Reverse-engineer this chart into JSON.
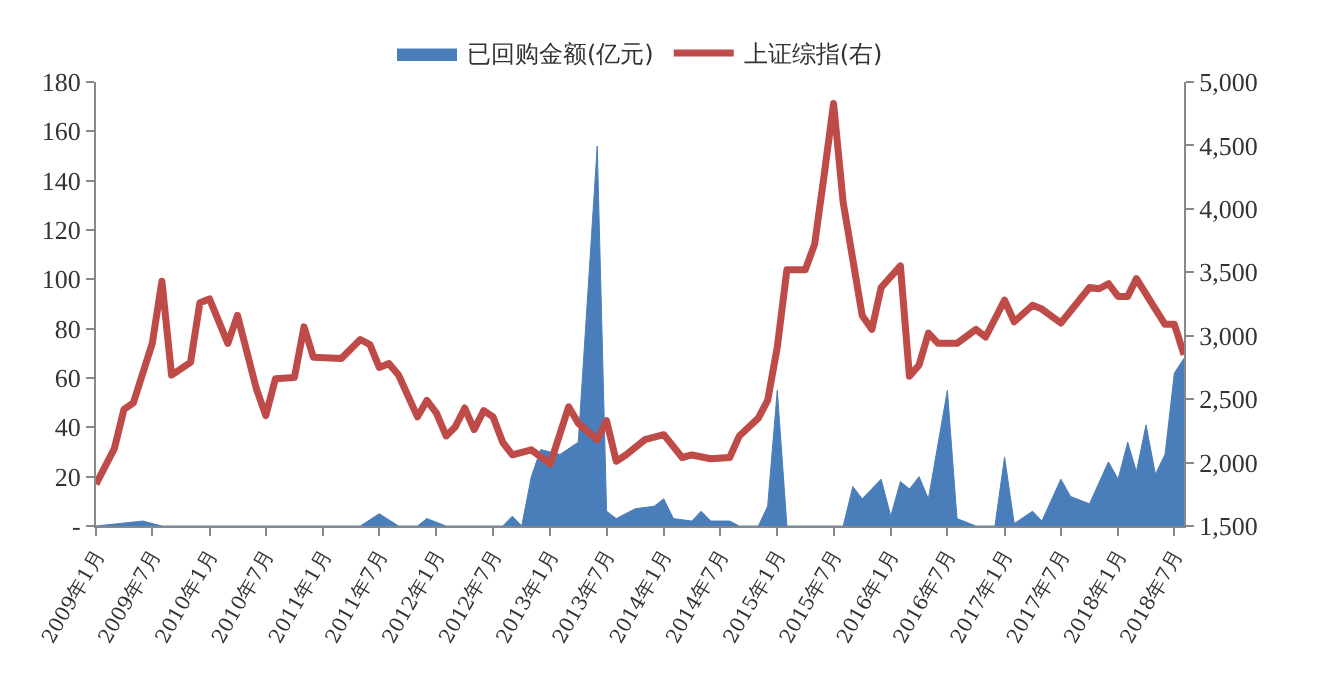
{
  "chart_data": {
    "type": "area",
    "legend": "top",
    "xlim": [
      "2009-01",
      "2018-08"
    ],
    "xticks": [
      {
        "value": "2009-01",
        "label": "2009年1月"
      },
      {
        "value": "2009-07",
        "label": "2009年7月"
      },
      {
        "value": "2010-01",
        "label": "2010年1月"
      },
      {
        "value": "2010-07",
        "label": "2010年7月"
      },
      {
        "value": "2011-01",
        "label": "2011年1月"
      },
      {
        "value": "2011-07",
        "label": "2011年7月"
      },
      {
        "value": "2012-01",
        "label": "2012年1月"
      },
      {
        "value": "2012-07",
        "label": "2012年7月"
      },
      {
        "value": "2013-01",
        "label": "2013年1月"
      },
      {
        "value": "2013-07",
        "label": "2013年7月"
      },
      {
        "value": "2014-01",
        "label": "2014年1月"
      },
      {
        "value": "2014-07",
        "label": "2014年7月"
      },
      {
        "value": "2015-01",
        "label": "2015年1月"
      },
      {
        "value": "2015-07",
        "label": "2015年7月"
      },
      {
        "value": "2016-01",
        "label": "2016年1月"
      },
      {
        "value": "2016-07",
        "label": "2016年7月"
      },
      {
        "value": "2017-01",
        "label": "2017年1月"
      },
      {
        "value": "2017-07",
        "label": "2017年7月"
      },
      {
        "value": "2018-01",
        "label": "2018年1月"
      },
      {
        "value": "2018-07",
        "label": "2018年7月"
      }
    ],
    "ylim": [
      0,
      180
    ],
    "yticks": [
      {
        "value": 0,
        "label": "-"
      },
      20,
      40,
      60,
      80,
      100,
      120,
      140,
      160,
      180
    ],
    "y2lim": [
      1500,
      5000
    ],
    "y2ticks": [
      {
        "value": 1500,
        "label": "1,500"
      },
      {
        "value": 2000,
        "label": "2,000"
      },
      {
        "value": 2500,
        "label": "2,500"
      },
      {
        "value": 3000,
        "label": "3,000"
      },
      {
        "value": 3500,
        "label": "3,500"
      },
      {
        "value": 4000,
        "label": "4,000"
      },
      {
        "value": 4500,
        "label": "4,500"
      },
      {
        "value": 5000,
        "label": "5,000"
      }
    ],
    "series": [
      {
        "name": "已回购金额(亿元)",
        "color": "#4a7ebb",
        "x": [
          "2009-01",
          "2009-06",
          "2009-08",
          "2011-05",
          "2011-07",
          "2011-09",
          "2011-11",
          "2011-12",
          "2012-02",
          "2012-08",
          "2012-09",
          "2012-10",
          "2012-11",
          "2012-12",
          "2013-02",
          "2013-04",
          "2013-06",
          "2013-07",
          "2013-08",
          "2013-10",
          "2013-12",
          "2014-01",
          "2014-02",
          "2014-04",
          "2014-05",
          "2014-06",
          "2014-08",
          "2014-09",
          "2014-11",
          "2014-12",
          "2015-01",
          "2015-02",
          "2015-08",
          "2015-09",
          "2015-10",
          "2015-12",
          "2016-01",
          "2016-02",
          "2016-03",
          "2016-04",
          "2016-05",
          "2016-07",
          "2016-08",
          "2016-10",
          "2016-12",
          "2017-01",
          "2017-02",
          "2017-04",
          "2017-05",
          "2017-07",
          "2017-08",
          "2017-10",
          "2017-12",
          "2018-01",
          "2018-02",
          "2018-03",
          "2018-04",
          "2018-05",
          "2018-06",
          "2018-07",
          "2018-08"
        ],
        "values": [
          0,
          2,
          0,
          0,
          5,
          0,
          0,
          3,
          0,
          0,
          4,
          0,
          20,
          31,
          29,
          34,
          154,
          6,
          3,
          7,
          8,
          11,
          3,
          2,
          6,
          2,
          2,
          0,
          0,
          8,
          55,
          0,
          0,
          16,
          11,
          19,
          4,
          18,
          15,
          20,
          11,
          55,
          3,
          0,
          0,
          28,
          1,
          6,
          2,
          19,
          12,
          9,
          26,
          19,
          34,
          22,
          41,
          21,
          29,
          62,
          68
        ]
      },
      {
        "name": "上证综指(右)",
        "type": "line",
        "axis": "y2",
        "color": "#be4b48",
        "line_style": "solid",
        "marker": "none",
        "x": [
          "2009-01",
          "2009-03",
          "2009-04",
          "2009-05",
          "2009-07",
          "2009-08",
          "2009-09",
          "2009-11",
          "2009-12",
          "2010-01",
          "2010-03",
          "2010-04",
          "2010-06",
          "2010-07",
          "2010-08",
          "2010-10",
          "2010-11",
          "2010-12",
          "2011-03",
          "2011-05",
          "2011-06",
          "2011-07",
          "2011-08",
          "2011-09",
          "2011-11",
          "2011-12",
          "2012-01",
          "2012-02",
          "2012-03",
          "2012-04",
          "2012-05",
          "2012-06",
          "2012-07",
          "2012-08",
          "2012-09",
          "2012-11",
          "2013-01",
          "2013-03",
          "2013-04",
          "2013-06",
          "2013-07",
          "2013-08",
          "2013-09",
          "2013-11",
          "2014-01",
          "2014-03",
          "2014-04",
          "2014-06",
          "2014-08",
          "2014-09",
          "2014-11",
          "2014-12",
          "2015-01",
          "2015-02",
          "2015-04",
          "2015-05",
          "2015-06",
          "2015-07",
          "2015-08",
          "2015-09",
          "2015-10",
          "2015-11",
          "2015-12",
          "2016-02",
          "2016-03",
          "2016-04",
          "2016-05",
          "2016-06",
          "2016-08",
          "2016-10",
          "2016-11",
          "2017-01",
          "2017-02",
          "2017-04",
          "2017-05",
          "2017-07",
          "2017-10",
          "2017-11",
          "2017-12",
          "2018-01",
          "2018-02",
          "2018-03",
          "2018-05",
          "2018-06",
          "2018-07",
          "2018-08"
        ],
        "values": [
          1830,
          2110,
          2420,
          2470,
          2940,
          3430,
          2690,
          2790,
          3260,
          3290,
          2940,
          3160,
          2580,
          2370,
          2660,
          2670,
          3070,
          2830,
          2820,
          2970,
          2930,
          2750,
          2780,
          2690,
          2360,
          2490,
          2390,
          2210,
          2280,
          2430,
          2260,
          2410,
          2360,
          2160,
          2060,
          2100,
          1990,
          2440,
          2310,
          2180,
          2330,
          2010,
          2060,
          2180,
          2220,
          2040,
          2060,
          2030,
          2040,
          2210,
          2350,
          2490,
          2910,
          3520,
          3520,
          3720,
          4270,
          4830,
          4050,
          3600,
          3160,
          3050,
          3380,
          3550,
          2680,
          2770,
          3020,
          2940,
          2940,
          3050,
          2990,
          3280,
          3110,
          3240,
          3210,
          3100,
          3380,
          3370,
          3410,
          3310,
          3310,
          3450,
          3210,
          3090,
          3090,
          2850
        ]
      }
    ]
  }
}
